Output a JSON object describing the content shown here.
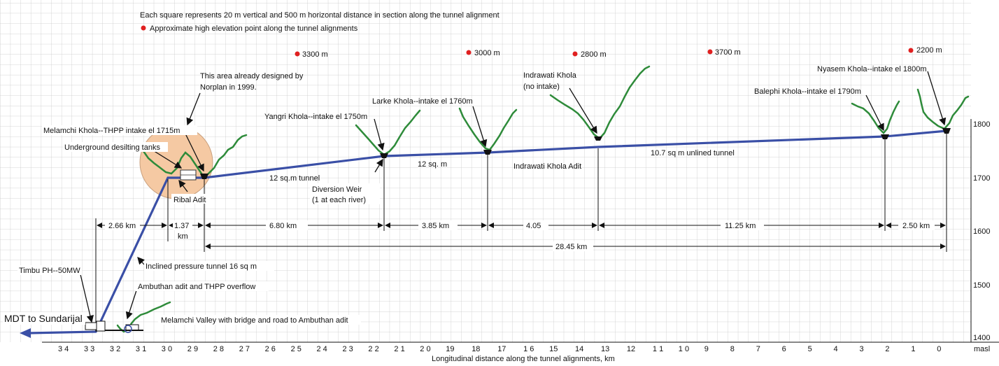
{
  "header": {
    "scale_note": "Each square represents 20 m vertical and 500 m horizontal distance in section along the tunnel alignment",
    "high_point_note": "Approximate high elevation point along the tunnel alignments"
  },
  "high_points": [
    "3300 m",
    "3000 m",
    "2800 m",
    "3700 m",
    "2200 m"
  ],
  "labels": {
    "norplan": [
      "This area already designed by",
      "Norplan in 1999."
    ],
    "melamchi_intake": "Melamchi Khola--THPP intake el 1715m",
    "desilting": "Underground desilting tanks",
    "ribal_adit": "Ribal Adit",
    "yangri": "Yangri Khola--intake el 1750m",
    "larke": "Larke Khola--intake el 1760m",
    "indrawati": [
      "Indrawati Khola",
      "(no intake)"
    ],
    "balephi": "Balephi Khola--intake el 1790m",
    "nyasem": "Nyasem Khola--intake el 1800m",
    "tunnel_12sqm": "12 sq.m tunnel",
    "diversion_weir": [
      "Diversion Weir",
      "(1 at each river)"
    ],
    "tunnel_12sq": "12 sq. m",
    "indrawati_adit": "Indrawati Khola Adit",
    "unlined": "10.7 sq m unlined tunnel",
    "timbu": "Timbu PH--50MW",
    "inclined": "Inclined pressure tunnel 16 sq m",
    "ambuthan": "Ambuthan adit and THPP overflow",
    "melamchi_valley": "Melamchi Valley with bridge and road to Ambuthan adit",
    "mdt": "MDT to Sundarijal"
  },
  "distances": {
    "d1": "2.66 km",
    "d2a": "1.37",
    "d2b": "km",
    "d3": "6.80 km",
    "d4": "3.85 km",
    "d5": "4.05",
    "d6": "11.25 km",
    "d7": "2.50 km",
    "total": "28.45 km"
  },
  "elevation_axis": {
    "ticks": [
      "1800",
      "1700",
      "1600",
      "1500",
      "1400"
    ],
    "unit": "masl"
  },
  "distance_axis": {
    "ticks": [
      "3 4",
      "3 3",
      "3 2",
      "3 1",
      "3 0",
      "2 9",
      "2 8",
      "2 7",
      "2 6",
      "2 5",
      "2 4",
      "2 3",
      "2 2",
      "2 1",
      "2 0",
      "19",
      "18",
      "17",
      "1 6",
      "15",
      "14",
      "13",
      "12",
      "1 1",
      "1 0",
      "9",
      "8",
      "7",
      "6",
      "5",
      "4",
      "3",
      "2",
      "1",
      "0"
    ],
    "label": "Longitudinal distance along the tunnel alignments, km"
  },
  "colors": {
    "tunnel": "#3a4fa6",
    "river": "#2e8b3a",
    "grid": "#c9c9c9",
    "high_point": "#e02020",
    "circle": "#f5c9a3"
  }
}
